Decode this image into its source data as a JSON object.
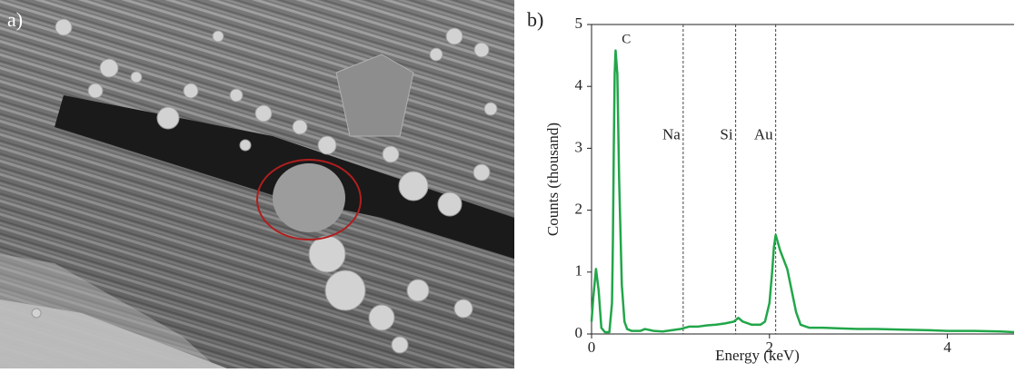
{
  "panel_labels": [
    "a)",
    "b)"
  ],
  "chart_data": {
    "type": "line",
    "xlabel": "Energy (keV)",
    "ylabel": "Counts (thousand)",
    "color": "#22a64a",
    "x": [
      0,
      0.02,
      0.05,
      0.08,
      0.11,
      0.15,
      0.2,
      0.23,
      0.24,
      0.25,
      0.26,
      0.27,
      0.29,
      0.31,
      0.34,
      0.37,
      0.4,
      0.45,
      0.55,
      0.6,
      0.7,
      0.8,
      0.9,
      1.0,
      1.1,
      1.2,
      1.3,
      1.4,
      1.5,
      1.6,
      1.65,
      1.7,
      1.8,
      1.9,
      1.95,
      2.0,
      2.03,
      2.05,
      2.07,
      2.09,
      2.12,
      2.16,
      2.2,
      2.25,
      2.3,
      2.35,
      2.45,
      2.6,
      2.8,
      3.0,
      3.2,
      3.5,
      3.8,
      4.0,
      4.3,
      4.6,
      4.75
    ],
    "values": [
      0.2,
      0.6,
      1.05,
      0.7,
      0.1,
      0.03,
      0.03,
      0.5,
      1.5,
      3.0,
      4.2,
      4.58,
      4.2,
      2.5,
      0.8,
      0.2,
      0.08,
      0.05,
      0.05,
      0.08,
      0.05,
      0.04,
      0.06,
      0.08,
      0.12,
      0.12,
      0.14,
      0.15,
      0.17,
      0.2,
      0.26,
      0.2,
      0.15,
      0.15,
      0.2,
      0.5,
      1.0,
      1.4,
      1.6,
      1.5,
      1.35,
      1.2,
      1.05,
      0.7,
      0.35,
      0.15,
      0.1,
      0.1,
      0.09,
      0.08,
      0.08,
      0.07,
      0.06,
      0.05,
      0.05,
      0.04,
      0.03
    ],
    "xlim": [
      0,
      4.75
    ],
    "ylim": [
      0,
      5
    ],
    "xticks": [
      0,
      2,
      4
    ],
    "yticks": [
      0,
      1,
      2,
      3,
      4,
      5
    ],
    "peak_labels": [
      {
        "text": "C",
        "x": 0.34,
        "y": 4.75
      }
    ],
    "element_lines": [
      {
        "text": "Na",
        "x": 1.03
      },
      {
        "text": "Si",
        "x": 1.62
      },
      {
        "text": "Au",
        "x": 2.07
      }
    ]
  }
}
